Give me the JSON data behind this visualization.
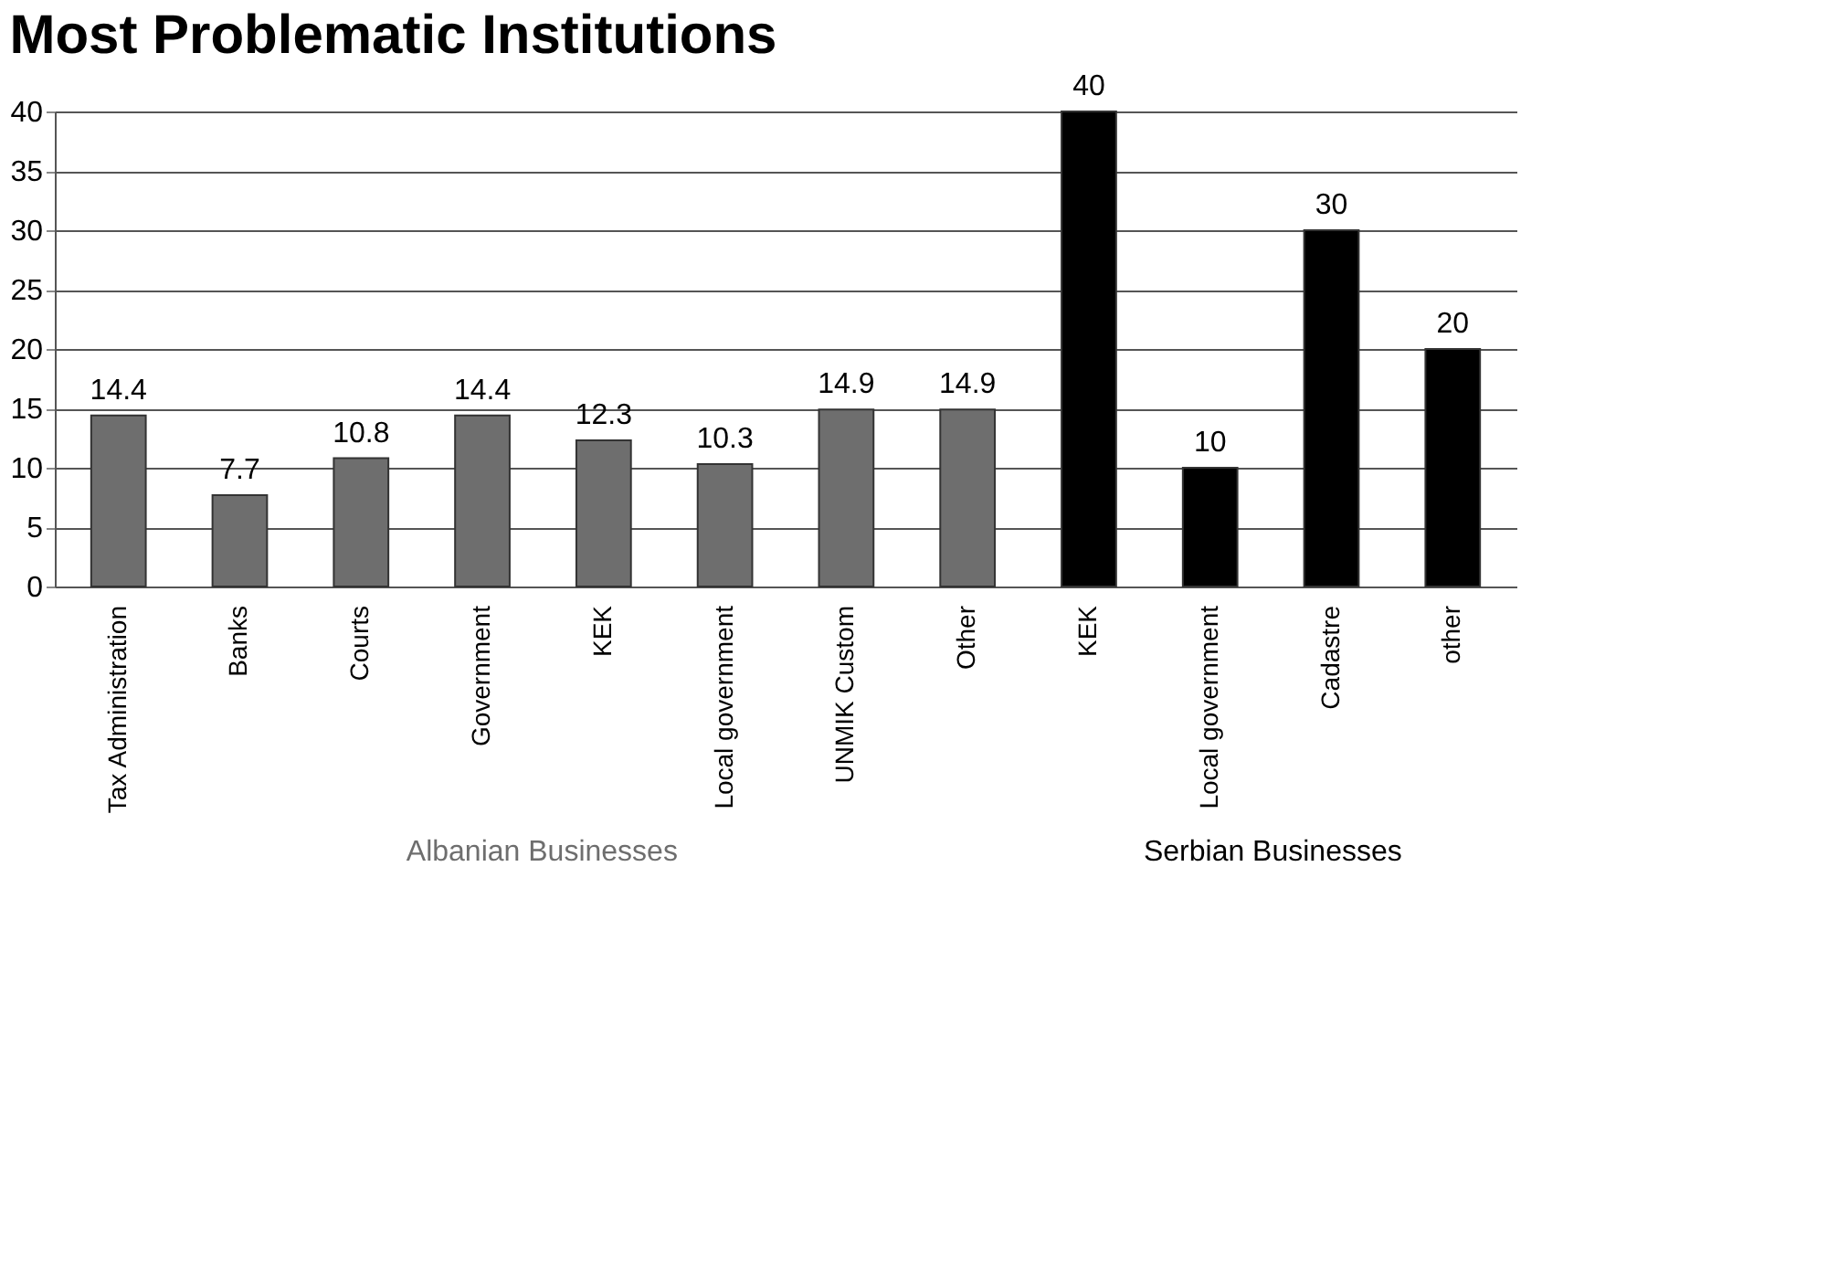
{
  "chart_data": {
    "type": "bar",
    "title": "Most Problematic Institutions",
    "categories": [
      "Tax Administration",
      "Banks",
      "Courts",
      "Government",
      "KEK",
      "Local government",
      "UNMIK Custom",
      "Other",
      "KEK",
      "Local government",
      "Cadastre",
      "other"
    ],
    "series": [
      {
        "name": "Albanian Businesses",
        "color": "#6e6e6e",
        "values": [
          14.4,
          7.7,
          10.8,
          14.4,
          12.3,
          10.3,
          14.9,
          14.9,
          null,
          null,
          null,
          null
        ]
      },
      {
        "name": "Serbian Businesses",
        "color": "#000000",
        "values": [
          null,
          null,
          null,
          null,
          null,
          null,
          null,
          null,
          40,
          10,
          30,
          20
        ]
      }
    ],
    "ylim": [
      0,
      40
    ],
    "yticks": [
      0,
      5,
      10,
      15,
      20,
      25,
      30,
      35,
      40
    ],
    "grid": "y",
    "data_labels": true
  }
}
